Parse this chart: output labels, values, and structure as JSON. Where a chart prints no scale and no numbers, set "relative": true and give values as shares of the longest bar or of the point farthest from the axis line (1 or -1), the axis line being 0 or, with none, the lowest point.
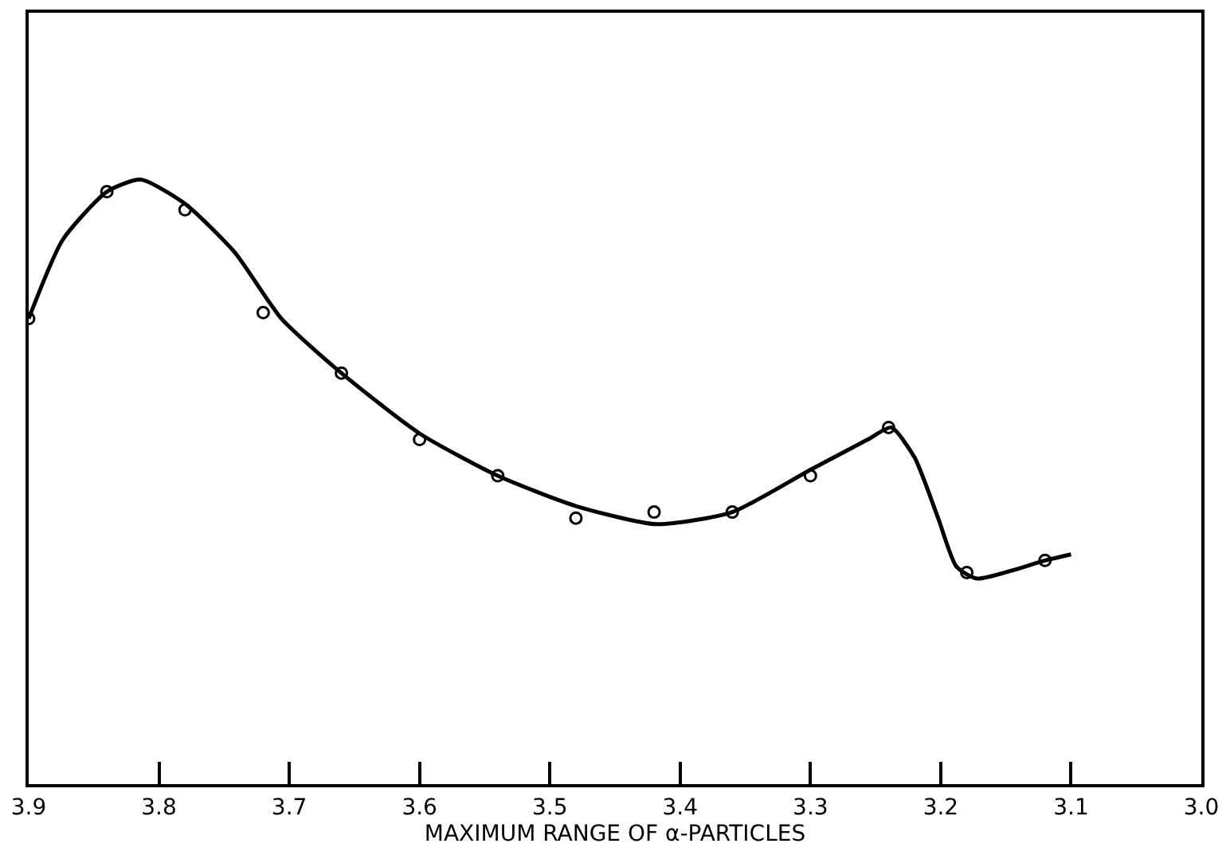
{
  "chart_data": {
    "type": "line",
    "relative": true,
    "xlabel": "MAXIMUM RANGE OF α-PARTICLES",
    "xlim": [
      3.9,
      3.0
    ],
    "xticks": [
      3.9,
      3.8,
      3.7,
      3.6,
      3.5,
      3.4,
      3.3,
      3.2,
      3.1,
      {
        "value": 3.0,
        "label": "3.0"
      }
    ],
    "series": [
      {
        "type": "scatter",
        "marker": "circle",
        "color": "#000000",
        "x": [
          3.9,
          3.84,
          3.78,
          3.72,
          3.66,
          3.6,
          3.54,
          3.48,
          3.42,
          3.36,
          3.3,
          3.24,
          3.18,
          3.12
        ],
        "values": [
          0.77,
          0.98,
          0.95,
          0.78,
          0.68,
          0.57,
          0.51,
          0.44,
          0.45,
          0.45,
          0.51,
          0.59,
          0.35,
          0.37
        ]
      },
      {
        "marker": "none",
        "line_style": "solid",
        "color": "#000000",
        "x": [
          3.9,
          3.874,
          3.84,
          3.814,
          3.78,
          3.742,
          3.706,
          3.66,
          3.6,
          3.54,
          3.48,
          3.418,
          3.36,
          3.3,
          3.256,
          3.238,
          3.22,
          3.202,
          3.188,
          3.172,
          3.12,
          3.1
        ],
        "values": [
          0.77,
          0.9,
          0.98,
          1.0,
          0.96,
          0.88,
          0.77,
          0.68,
          0.58,
          0.51,
          0.46,
          0.43,
          0.45,
          0.52,
          0.57,
          0.59,
          0.54,
          0.44,
          0.36,
          0.34,
          0.37,
          0.38
        ]
      }
    ]
  }
}
